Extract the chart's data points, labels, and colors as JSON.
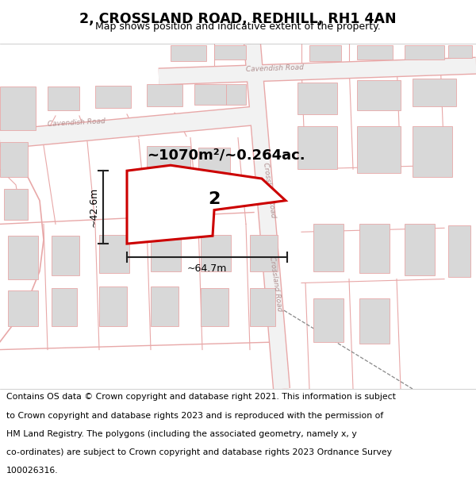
{
  "title": "2, CROSSLAND ROAD, REDHILL, RH1 4AN",
  "subtitle": "Map shows position and indicative extent of the property.",
  "area_label": "~1070m²/~0.264ac.",
  "width_label": "~64.7m",
  "height_label": "~42.6m",
  "property_number": "2",
  "map_bg": "#ffffff",
  "road_color": "#e8a8a8",
  "road_fill": "#f0f0f0",
  "building_color": "#d8d8d8",
  "building_edge": "#e8a8a8",
  "property_outline_color": "#cc0000",
  "road_label_color": "#b09090",
  "dim_color": "#222222",
  "title_color": "#000000",
  "footer_lines": [
    "Contains OS data © Crown copyright and database right 2021. This information is subject",
    "to Crown copyright and database rights 2023 and is reproduced with the permission of",
    "HM Land Registry. The polygons (including the associated geometry, namely x, y",
    "co-ordinates) are subject to Crown copyright and database rights 2023 Ordnance Survey",
    "100026316."
  ],
  "map_xlim": [
    0,
    600
  ],
  "map_ylim": [
    0,
    440
  ]
}
